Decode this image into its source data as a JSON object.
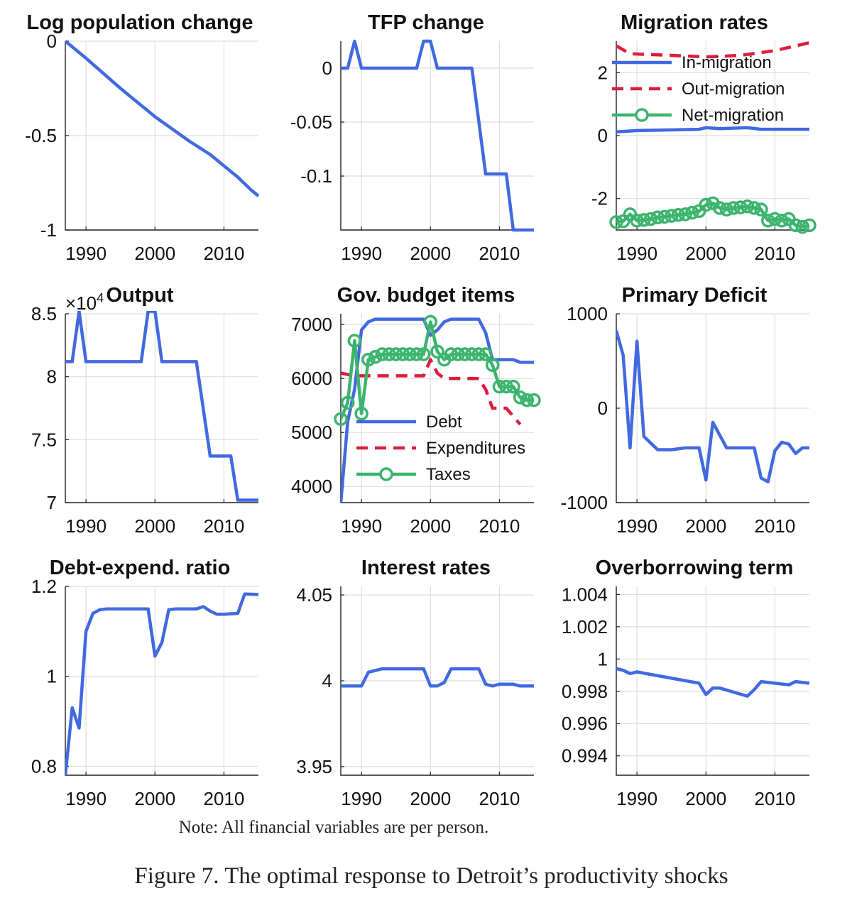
{
  "colors": {
    "blue": "#4169e1",
    "red": "#dc1e3c",
    "green": "#3cb46e"
  },
  "note": "Note: All financial variables are per person.",
  "caption": "Figure 7. The optimal response to Detroit’s productivity shocks",
  "chart_data": [
    {
      "type": "line",
      "title": "Log population change",
      "xlim": [
        1987,
        2015
      ],
      "ylim": [
        -1,
        0
      ],
      "xticks": [
        1990,
        2000,
        2010
      ],
      "yticks": [
        -1,
        -0.5,
        0
      ],
      "ytick_labels": [
        "-1",
        "-0.5",
        "0"
      ],
      "series": [
        {
          "color": "blue",
          "style": "solid",
          "markers": false,
          "x": [
            1987,
            1990,
            1995,
            2000,
            2005,
            2008,
            2010,
            2012,
            2014,
            2015
          ],
          "y": [
            0,
            -0.09,
            -0.25,
            -0.4,
            -0.53,
            -0.6,
            -0.66,
            -0.72,
            -0.79,
            -0.82
          ]
        }
      ]
    },
    {
      "type": "line",
      "title": "TFP change",
      "xlim": [
        1987,
        2015
      ],
      "ylim": [
        -0.15,
        0.025
      ],
      "xticks": [
        1990,
        2000,
        2010
      ],
      "yticks": [
        -0.1,
        -0.05,
        0
      ],
      "ytick_labels": [
        "-0.1",
        "-0.05",
        "0"
      ],
      "series": [
        {
          "color": "blue",
          "style": "solid",
          "markers": false,
          "x": [
            1987,
            1988,
            1989,
            1990,
            1998,
            1999,
            2000,
            2001,
            2006,
            2008,
            2011,
            2012,
            2015
          ],
          "y": [
            0,
            0,
            0.025,
            0,
            0,
            0.025,
            0.025,
            0,
            0,
            -0.098,
            -0.098,
            -0.15,
            -0.15
          ]
        }
      ]
    },
    {
      "type": "line",
      "title": "Migration rates",
      "xlim": [
        1987,
        2015
      ],
      "ylim": [
        -3,
        3
      ],
      "xticks": [
        1990,
        2000,
        2010
      ],
      "yticks": [
        -2,
        0,
        2
      ],
      "ytick_labels": [
        "-2",
        "0",
        "2"
      ],
      "legend": {
        "position": "top-right",
        "entries": [
          "In-migration",
          "Out-migration",
          "Net-migration"
        ]
      },
      "series": [
        {
          "name": "In-migration",
          "color": "blue",
          "style": "solid",
          "markers": false,
          "x": [
            1987,
            1990,
            1995,
            1999,
            2000,
            2002,
            2006,
            2008,
            2010,
            2012,
            2015
          ],
          "y": [
            0.12,
            0.16,
            0.18,
            0.2,
            0.25,
            0.22,
            0.25,
            0.2,
            0.2,
            0.2,
            0.2
          ]
        },
        {
          "name": "Out-migration",
          "color": "red",
          "style": "dashed",
          "markers": false,
          "x": [
            1987,
            1989,
            1995,
            2000,
            2005,
            2010,
            2015
          ],
          "y": [
            2.85,
            2.6,
            2.55,
            2.5,
            2.55,
            2.7,
            2.95
          ]
        },
        {
          "name": "Net-migration",
          "color": "green",
          "style": "solid",
          "markers": true,
          "x": [
            1987,
            1988,
            1989,
            1990,
            1991,
            1992,
            1993,
            1994,
            1995,
            1996,
            1997,
            1998,
            1999,
            2000,
            2001,
            2002,
            2003,
            2004,
            2005,
            2006,
            2007,
            2008,
            2009,
            2010,
            2011,
            2012,
            2013,
            2014,
            2015
          ],
          "y": [
            -2.75,
            -2.72,
            -2.5,
            -2.7,
            -2.68,
            -2.65,
            -2.6,
            -2.58,
            -2.55,
            -2.52,
            -2.5,
            -2.45,
            -2.4,
            -2.2,
            -2.15,
            -2.3,
            -2.35,
            -2.3,
            -2.28,
            -2.25,
            -2.3,
            -2.35,
            -2.7,
            -2.65,
            -2.7,
            -2.65,
            -2.85,
            -2.9,
            -2.85
          ]
        }
      ]
    },
    {
      "type": "line",
      "title": "Output",
      "exponent_label": "×10",
      "exponent_power": "4",
      "xlim": [
        1987,
        2015
      ],
      "ylim": [
        7,
        8.5
      ],
      "xticks": [
        1990,
        2000,
        2010
      ],
      "yticks": [
        7,
        7.5,
        8,
        8.5
      ],
      "ytick_labels": [
        "7",
        "7.5",
        "8",
        "8.5"
      ],
      "series": [
        {
          "color": "blue",
          "style": "solid",
          "markers": false,
          "x": [
            1987,
            1988,
            1989,
            1990,
            1998,
            1999,
            2000,
            2001,
            2006,
            2008,
            2011,
            2012,
            2015
          ],
          "y": [
            8.12,
            8.12,
            8.52,
            8.12,
            8.12,
            8.52,
            8.52,
            8.12,
            8.12,
            7.37,
            7.37,
            7.02,
            7.02
          ]
        }
      ]
    },
    {
      "type": "line",
      "title": "Gov. budget items",
      "xlim": [
        1987,
        2015
      ],
      "ylim": [
        3700,
        7200
      ],
      "xticks": [
        1990,
        2000,
        2010
      ],
      "yticks": [
        4000,
        5000,
        6000,
        7000
      ],
      "ytick_labels": [
        "4000",
        "5000",
        "6000",
        "7000"
      ],
      "legend": {
        "position": "bottom-right",
        "entries": [
          "Debt",
          "Expenditures",
          "Taxes"
        ]
      },
      "series": [
        {
          "name": "Debt",
          "color": "blue",
          "style": "solid",
          "markers": false,
          "x": [
            1987,
            1988,
            1989,
            1990,
            1991,
            1992,
            1995,
            1999,
            2000,
            2001,
            2002,
            2003,
            2007,
            2008,
            2009,
            2012,
            2013,
            2015
          ],
          "y": [
            3700,
            5200,
            5800,
            6900,
            7050,
            7100,
            7100,
            7100,
            6800,
            6900,
            7050,
            7100,
            7100,
            6850,
            6350,
            6350,
            6300,
            6300
          ]
        },
        {
          "name": "Expenditures",
          "color": "red",
          "style": "dashed",
          "markers": false,
          "x": [
            1987,
            1989,
            1990,
            1999,
            2000,
            2001,
            2002,
            2006,
            2007,
            2008,
            2009,
            2011,
            2012,
            2013
          ],
          "y": [
            6100,
            6050,
            6050,
            6050,
            6350,
            6100,
            6000,
            6000,
            6000,
            5800,
            5450,
            5450,
            5300,
            5150
          ]
        },
        {
          "name": "Taxes",
          "color": "green",
          "style": "solid",
          "markers": true,
          "x": [
            1987,
            1988,
            1989,
            1990,
            1991,
            1992,
            1993,
            1994,
            1995,
            1996,
            1997,
            1998,
            1999,
            2000,
            2001,
            2002,
            2003,
            2004,
            2005,
            2006,
            2007,
            2008,
            2009,
            2010,
            2011,
            2012,
            2013,
            2014,
            2015
          ],
          "y": [
            5250,
            5550,
            6700,
            5350,
            6350,
            6400,
            6450,
            6450,
            6450,
            6450,
            6450,
            6450,
            6450,
            7050,
            6500,
            6350,
            6450,
            6450,
            6450,
            6450,
            6450,
            6450,
            6250,
            5850,
            5850,
            5850,
            5650,
            5600,
            5600
          ]
        }
      ]
    },
    {
      "type": "line",
      "title": "Primary Deficit",
      "xlim": [
        1987,
        2015
      ],
      "ylim": [
        -1000,
        1000
      ],
      "xticks": [
        1990,
        2000,
        2010
      ],
      "yticks": [
        -1000,
        0,
        1000
      ],
      "ytick_labels": [
        "-1000",
        "0",
        "1000"
      ],
      "series": [
        {
          "color": "blue",
          "style": "solid",
          "markers": false,
          "x": [
            1987,
            1988,
            1989,
            1990,
            1991,
            1993,
            1995,
            1997,
            1999,
            2000,
            2001,
            2003,
            2005,
            2007,
            2008,
            2009,
            2010,
            2011,
            2012,
            2013,
            2014,
            2015
          ],
          "y": [
            820,
            560,
            -420,
            710,
            -300,
            -440,
            -440,
            -420,
            -420,
            -760,
            -150,
            -420,
            -420,
            -420,
            -740,
            -780,
            -450,
            -360,
            -380,
            -480,
            -420,
            -420
          ]
        }
      ]
    },
    {
      "type": "line",
      "title": "Debt-expend. ratio",
      "xlim": [
        1987,
        2015
      ],
      "ylim": [
        0.78,
        1.2
      ],
      "xticks": [
        1990,
        2000,
        2010
      ],
      "yticks": [
        0.8,
        1,
        1.2
      ],
      "ytick_labels": [
        "0.8",
        "1",
        "1.2"
      ],
      "series": [
        {
          "color": "blue",
          "style": "solid",
          "markers": false,
          "x": [
            1987,
            1988,
            1989,
            1990,
            1991,
            1992,
            1993,
            1999,
            2000,
            2001,
            2002,
            2003,
            2006,
            2007,
            2008,
            2009,
            2010,
            2012,
            2013,
            2015
          ],
          "y": [
            0.78,
            0.93,
            0.885,
            1.1,
            1.14,
            1.148,
            1.15,
            1.15,
            1.045,
            1.075,
            1.148,
            1.15,
            1.15,
            1.155,
            1.145,
            1.138,
            1.138,
            1.14,
            1.183,
            1.182
          ]
        }
      ]
    },
    {
      "type": "line",
      "title": "Interest rates",
      "xlim": [
        1987,
        2015
      ],
      "ylim": [
        3.945,
        4.055
      ],
      "xticks": [
        1990,
        2000,
        2010
      ],
      "yticks": [
        3.95,
        4,
        4.05
      ],
      "ytick_labels": [
        "3.95",
        "4",
        "4.05"
      ],
      "series": [
        {
          "color": "blue",
          "style": "solid",
          "markers": false,
          "x": [
            1987,
            1990,
            1991,
            1993,
            1995,
            1999,
            2000,
            2001,
            2002,
            2003,
            2007,
            2008,
            2009,
            2010,
            2012,
            2013,
            2015
          ],
          "y": [
            3.997,
            3.997,
            4.005,
            4.007,
            4.007,
            4.007,
            3.997,
            3.997,
            3.999,
            4.007,
            4.007,
            3.998,
            3.997,
            3.998,
            3.998,
            3.997,
            3.997
          ]
        }
      ]
    },
    {
      "type": "line",
      "title": "Overborrowing term",
      "xlim": [
        1987,
        2015
      ],
      "ylim": [
        0.9928,
        1.0045
      ],
      "xticks": [
        1990,
        2000,
        2010
      ],
      "yticks": [
        0.994,
        0.996,
        0.998,
        1,
        1.002,
        1.004
      ],
      "ytick_labels": [
        "0.994",
        "0.996",
        "0.998",
        "1",
        "1.002",
        "1.004"
      ],
      "series": [
        {
          "color": "blue",
          "style": "solid",
          "markers": false,
          "x": [
            1987,
            1988,
            1989,
            1990,
            1999,
            2000,
            2001,
            2002,
            2006,
            2007,
            2008,
            2010,
            2012,
            2013,
            2015
          ],
          "y": [
            0.9994,
            0.9993,
            0.9991,
            0.9992,
            0.9985,
            0.9978,
            0.9982,
            0.9982,
            0.9977,
            0.9981,
            0.9986,
            0.9985,
            0.9984,
            0.9986,
            0.9985
          ]
        }
      ]
    }
  ]
}
